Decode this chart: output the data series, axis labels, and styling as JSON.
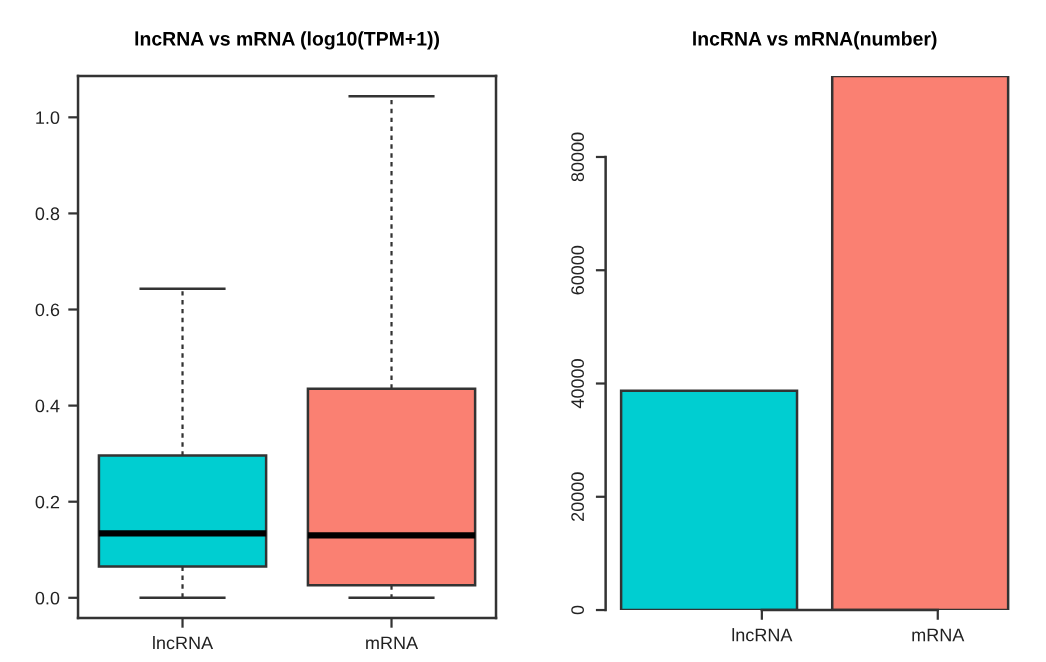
{
  "chart_data": [
    {
      "type": "box",
      "title": "lncRNA vs mRNA (log10(TPM+1))",
      "categories": [
        "lncRNA",
        "mRNA"
      ],
      "colors": [
        "#00ced1",
        "#fa8072"
      ],
      "boxes": [
        {
          "low": 0.0,
          "q1": 0.065,
          "median": 0.134,
          "q3": 0.296,
          "high": 0.643
        },
        {
          "low": 0.0,
          "q1": 0.026,
          "median": 0.13,
          "q3": 0.435,
          "high": 1.044
        }
      ],
      "ylim": [
        -0.042,
        1.086
      ],
      "yticks": [
        {
          "value": 0,
          "label": "0.0"
        },
        {
          "value": 0.2,
          "label": "0.2"
        },
        {
          "value": 0.4,
          "label": "0.4"
        },
        {
          "value": 0.6,
          "label": "0.6"
        },
        {
          "value": 0.8,
          "label": "0.8"
        },
        {
          "value": 1.0,
          "label": "1.0"
        }
      ]
    },
    {
      "type": "bar",
      "title": "lncRNA vs mRNA(number)",
      "categories": [
        "lncRNA",
        "mRNA"
      ],
      "values": [
        38700,
        94300
      ],
      "colors": [
        "#00ced1",
        "#fa8072"
      ],
      "ylim": [
        0,
        94300
      ],
      "yticks": [
        0,
        20000,
        40000,
        60000,
        80000
      ]
    }
  ]
}
